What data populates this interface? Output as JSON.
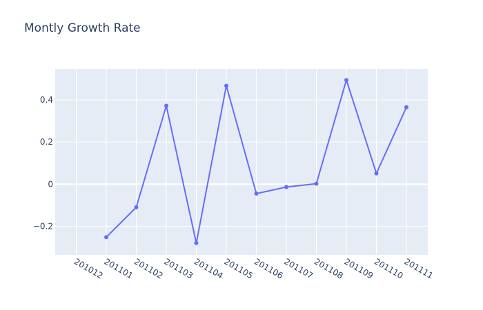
{
  "chart_data": {
    "type": "line",
    "title": "Montly Growth Rate",
    "xlabel": "",
    "ylabel": "",
    "categories": [
      "201012",
      "201101",
      "201102",
      "201103",
      "201104",
      "201105",
      "201106",
      "201107",
      "201108",
      "201109",
      "201110",
      "201111"
    ],
    "series": [
      {
        "values": [
          null,
          -0.252,
          -0.11,
          0.372,
          -0.28,
          0.467,
          -0.045,
          -0.014,
          0.002,
          0.494,
          0.051,
          0.365
        ],
        "color": "#636efa"
      }
    ],
    "y_ticks": [
      -0.2,
      0,
      0.2,
      0.4
    ],
    "y_tick_labels": [
      "−0.2",
      "0",
      "0.2",
      "0.4"
    ],
    "ylim": [
      -0.336,
      0.547
    ],
    "grid": true,
    "plot_background": "#e5ecf6",
    "gridline_color": "#ffffff"
  }
}
